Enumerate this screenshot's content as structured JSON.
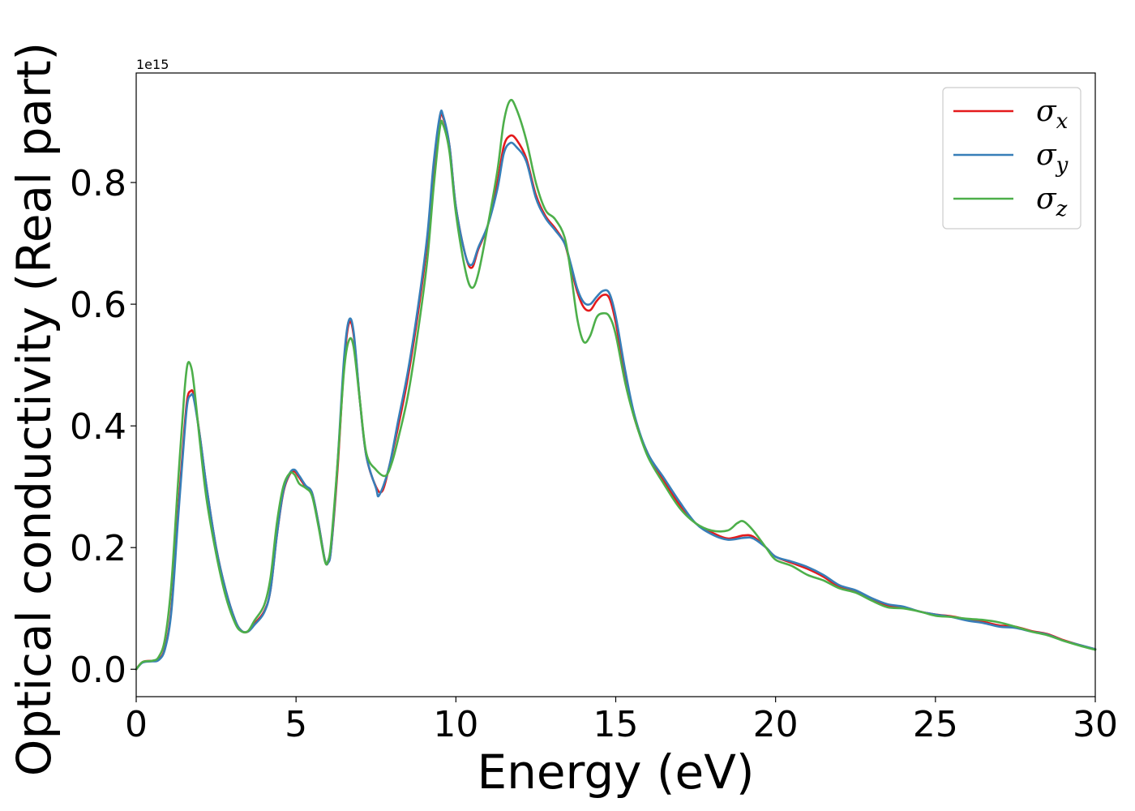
{
  "chart_data": {
    "type": "line",
    "title": "",
    "xlabel": "Energy (eV)",
    "ylabel": "Optical conductivity (Real part)",
    "y_offset_text": "1e15",
    "y_scale": 1000000000000000.0,
    "xlim": [
      0,
      30
    ],
    "ylim": [
      -0.045,
      0.98
    ],
    "x_ticks": [
      0,
      5,
      10,
      15,
      20,
      25,
      30
    ],
    "x_tick_labels": [
      "0",
      "5",
      "10",
      "15",
      "20",
      "25",
      "30"
    ],
    "y_ticks": [
      0.0,
      0.2,
      0.4,
      0.6,
      0.8
    ],
    "y_tick_labels": [
      "0.0",
      "0.2",
      "0.4",
      "0.6",
      "0.8"
    ],
    "grid": false,
    "legend_position": "top-right",
    "series": [
      {
        "name": "σ",
        "subscript": "x",
        "color": "#e41a1c",
        "points": [
          [
            0,
            0.0
          ],
          [
            0.2,
            0.012
          ],
          [
            0.5,
            0.014
          ],
          [
            0.7,
            0.016
          ],
          [
            0.9,
            0.035
          ],
          [
            1.1,
            0.1
          ],
          [
            1.3,
            0.25
          ],
          [
            1.5,
            0.39
          ],
          [
            1.6,
            0.445
          ],
          [
            1.7,
            0.457
          ],
          [
            1.8,
            0.45
          ],
          [
            2.0,
            0.38
          ],
          [
            2.2,
            0.3
          ],
          [
            2.5,
            0.2
          ],
          [
            2.8,
            0.13
          ],
          [
            3.1,
            0.08
          ],
          [
            3.3,
            0.063
          ],
          [
            3.5,
            0.062
          ],
          [
            3.7,
            0.075
          ],
          [
            4.0,
            0.095
          ],
          [
            4.2,
            0.13
          ],
          [
            4.4,
            0.22
          ],
          [
            4.6,
            0.29
          ],
          [
            4.8,
            0.32
          ],
          [
            4.95,
            0.325
          ],
          [
            5.1,
            0.315
          ],
          [
            5.3,
            0.3
          ],
          [
            5.5,
            0.29
          ],
          [
            5.7,
            0.24
          ],
          [
            5.9,
            0.18
          ],
          [
            6.0,
            0.175
          ],
          [
            6.1,
            0.2
          ],
          [
            6.3,
            0.33
          ],
          [
            6.5,
            0.5
          ],
          [
            6.65,
            0.568
          ],
          [
            6.8,
            0.55
          ],
          [
            7.0,
            0.44
          ],
          [
            7.2,
            0.35
          ],
          [
            7.5,
            0.3
          ],
          [
            7.7,
            0.293
          ],
          [
            7.9,
            0.33
          ],
          [
            8.2,
            0.4
          ],
          [
            8.5,
            0.48
          ],
          [
            8.8,
            0.58
          ],
          [
            9.1,
            0.7
          ],
          [
            9.3,
            0.82
          ],
          [
            9.5,
            0.905
          ],
          [
            9.6,
            0.907
          ],
          [
            9.8,
            0.86
          ],
          [
            10.0,
            0.76
          ],
          [
            10.3,
            0.68
          ],
          [
            10.5,
            0.66
          ],
          [
            10.7,
            0.69
          ],
          [
            11.0,
            0.73
          ],
          [
            11.3,
            0.8
          ],
          [
            11.5,
            0.86
          ],
          [
            11.7,
            0.877
          ],
          [
            11.9,
            0.87
          ],
          [
            12.2,
            0.84
          ],
          [
            12.5,
            0.78
          ],
          [
            12.8,
            0.745
          ],
          [
            13.1,
            0.725
          ],
          [
            13.4,
            0.7
          ],
          [
            13.6,
            0.66
          ],
          [
            13.8,
            0.62
          ],
          [
            14.0,
            0.595
          ],
          [
            14.2,
            0.59
          ],
          [
            14.4,
            0.605
          ],
          [
            14.6,
            0.615
          ],
          [
            14.8,
            0.61
          ],
          [
            15.0,
            0.57
          ],
          [
            15.3,
            0.48
          ],
          [
            15.6,
            0.41
          ],
          [
            16.0,
            0.355
          ],
          [
            16.5,
            0.31
          ],
          [
            17.0,
            0.27
          ],
          [
            17.5,
            0.24
          ],
          [
            18.0,
            0.225
          ],
          [
            18.5,
            0.215
          ],
          [
            19.0,
            0.22
          ],
          [
            19.3,
            0.218
          ],
          [
            19.7,
            0.2
          ],
          [
            20.0,
            0.185
          ],
          [
            20.5,
            0.175
          ],
          [
            21.0,
            0.165
          ],
          [
            21.5,
            0.152
          ],
          [
            22.0,
            0.135
          ],
          [
            22.5,
            0.128
          ],
          [
            23.0,
            0.115
          ],
          [
            23.5,
            0.105
          ],
          [
            24.0,
            0.102
          ],
          [
            24.5,
            0.095
          ],
          [
            25.0,
            0.09
          ],
          [
            25.5,
            0.087
          ],
          [
            26.0,
            0.082
          ],
          [
            26.5,
            0.078
          ],
          [
            27.0,
            0.072
          ],
          [
            27.5,
            0.07
          ],
          [
            28.0,
            0.063
          ],
          [
            28.5,
            0.058
          ],
          [
            29.0,
            0.048
          ],
          [
            29.5,
            0.04
          ],
          [
            30.0,
            0.033
          ]
        ]
      },
      {
        "name": "σ",
        "subscript": "y",
        "color": "#377eb8",
        "points": [
          [
            0,
            0.0
          ],
          [
            0.2,
            0.011
          ],
          [
            0.5,
            0.013
          ],
          [
            0.7,
            0.015
          ],
          [
            0.9,
            0.033
          ],
          [
            1.1,
            0.095
          ],
          [
            1.3,
            0.24
          ],
          [
            1.5,
            0.38
          ],
          [
            1.6,
            0.437
          ],
          [
            1.7,
            0.45
          ],
          [
            1.8,
            0.445
          ],
          [
            2.0,
            0.38
          ],
          [
            2.2,
            0.3
          ],
          [
            2.5,
            0.2
          ],
          [
            2.8,
            0.13
          ],
          [
            3.1,
            0.08
          ],
          [
            3.3,
            0.063
          ],
          [
            3.5,
            0.062
          ],
          [
            3.7,
            0.073
          ],
          [
            4.0,
            0.093
          ],
          [
            4.2,
            0.13
          ],
          [
            4.4,
            0.22
          ],
          [
            4.6,
            0.292
          ],
          [
            4.8,
            0.322
          ],
          [
            4.95,
            0.328
          ],
          [
            5.1,
            0.318
          ],
          [
            5.3,
            0.302
          ],
          [
            5.5,
            0.29
          ],
          [
            5.7,
            0.24
          ],
          [
            5.9,
            0.18
          ],
          [
            6.0,
            0.175
          ],
          [
            6.1,
            0.2
          ],
          [
            6.3,
            0.34
          ],
          [
            6.5,
            0.51
          ],
          [
            6.65,
            0.573
          ],
          [
            6.8,
            0.555
          ],
          [
            7.0,
            0.44
          ],
          [
            7.2,
            0.35
          ],
          [
            7.5,
            0.298
          ],
          [
            7.6,
            0.286
          ],
          [
            7.9,
            0.33
          ],
          [
            8.2,
            0.41
          ],
          [
            8.5,
            0.49
          ],
          [
            8.8,
            0.59
          ],
          [
            9.1,
            0.71
          ],
          [
            9.3,
            0.83
          ],
          [
            9.5,
            0.91
          ],
          [
            9.6,
            0.91
          ],
          [
            9.8,
            0.86
          ],
          [
            10.0,
            0.76
          ],
          [
            10.3,
            0.68
          ],
          [
            10.5,
            0.665
          ],
          [
            10.7,
            0.693
          ],
          [
            11.0,
            0.73
          ],
          [
            11.3,
            0.79
          ],
          [
            11.5,
            0.848
          ],
          [
            11.7,
            0.865
          ],
          [
            11.9,
            0.858
          ],
          [
            12.2,
            0.835
          ],
          [
            12.5,
            0.775
          ],
          [
            12.8,
            0.742
          ],
          [
            13.1,
            0.722
          ],
          [
            13.4,
            0.7
          ],
          [
            13.6,
            0.665
          ],
          [
            13.8,
            0.625
          ],
          [
            14.0,
            0.603
          ],
          [
            14.2,
            0.6
          ],
          [
            14.4,
            0.612
          ],
          [
            14.6,
            0.622
          ],
          [
            14.8,
            0.618
          ],
          [
            15.0,
            0.58
          ],
          [
            15.3,
            0.49
          ],
          [
            15.6,
            0.415
          ],
          [
            16.0,
            0.355
          ],
          [
            16.5,
            0.315
          ],
          [
            17.0,
            0.275
          ],
          [
            17.5,
            0.24
          ],
          [
            18.0,
            0.222
          ],
          [
            18.5,
            0.213
          ],
          [
            19.0,
            0.216
          ],
          [
            19.3,
            0.215
          ],
          [
            19.7,
            0.2
          ],
          [
            20.0,
            0.185
          ],
          [
            20.5,
            0.177
          ],
          [
            21.0,
            0.168
          ],
          [
            21.5,
            0.155
          ],
          [
            22.0,
            0.138
          ],
          [
            22.5,
            0.13
          ],
          [
            23.0,
            0.117
          ],
          [
            23.5,
            0.107
          ],
          [
            24.0,
            0.103
          ],
          [
            24.5,
            0.095
          ],
          [
            25.0,
            0.09
          ],
          [
            25.5,
            0.086
          ],
          [
            26.0,
            0.08
          ],
          [
            26.5,
            0.076
          ],
          [
            27.0,
            0.07
          ],
          [
            27.5,
            0.068
          ],
          [
            28.0,
            0.062
          ],
          [
            28.5,
            0.057
          ],
          [
            29.0,
            0.047
          ],
          [
            29.5,
            0.04
          ],
          [
            30.0,
            0.033
          ]
        ]
      },
      {
        "name": "σ",
        "subscript": "z",
        "color": "#4daf4a",
        "points": [
          [
            0,
            0.0
          ],
          [
            0.2,
            0.012
          ],
          [
            0.5,
            0.014
          ],
          [
            0.7,
            0.02
          ],
          [
            0.9,
            0.05
          ],
          [
            1.1,
            0.14
          ],
          [
            1.3,
            0.3
          ],
          [
            1.5,
            0.45
          ],
          [
            1.6,
            0.5
          ],
          [
            1.7,
            0.5
          ],
          [
            1.8,
            0.47
          ],
          [
            2.0,
            0.37
          ],
          [
            2.2,
            0.28
          ],
          [
            2.5,
            0.19
          ],
          [
            2.8,
            0.12
          ],
          [
            3.1,
            0.075
          ],
          [
            3.3,
            0.062
          ],
          [
            3.5,
            0.063
          ],
          [
            3.7,
            0.08
          ],
          [
            4.0,
            0.105
          ],
          [
            4.2,
            0.15
          ],
          [
            4.4,
            0.24
          ],
          [
            4.6,
            0.3
          ],
          [
            4.8,
            0.322
          ],
          [
            4.95,
            0.32
          ],
          [
            5.1,
            0.305
          ],
          [
            5.3,
            0.298
          ],
          [
            5.5,
            0.285
          ],
          [
            5.7,
            0.235
          ],
          [
            5.9,
            0.178
          ],
          [
            6.0,
            0.178
          ],
          [
            6.1,
            0.21
          ],
          [
            6.3,
            0.34
          ],
          [
            6.5,
            0.49
          ],
          [
            6.65,
            0.54
          ],
          [
            6.8,
            0.53
          ],
          [
            7.0,
            0.44
          ],
          [
            7.2,
            0.355
          ],
          [
            7.5,
            0.328
          ],
          [
            7.8,
            0.318
          ],
          [
            8.0,
            0.34
          ],
          [
            8.2,
            0.38
          ],
          [
            8.5,
            0.45
          ],
          [
            8.8,
            0.55
          ],
          [
            9.1,
            0.67
          ],
          [
            9.3,
            0.79
          ],
          [
            9.5,
            0.89
          ],
          [
            9.6,
            0.895
          ],
          [
            9.8,
            0.85
          ],
          [
            10.0,
            0.75
          ],
          [
            10.3,
            0.655
          ],
          [
            10.5,
            0.627
          ],
          [
            10.7,
            0.65
          ],
          [
            11.0,
            0.73
          ],
          [
            11.3,
            0.82
          ],
          [
            11.5,
            0.9
          ],
          [
            11.7,
            0.935
          ],
          [
            11.9,
            0.92
          ],
          [
            12.2,
            0.87
          ],
          [
            12.5,
            0.8
          ],
          [
            12.8,
            0.755
          ],
          [
            13.1,
            0.74
          ],
          [
            13.4,
            0.71
          ],
          [
            13.6,
            0.65
          ],
          [
            13.8,
            0.575
          ],
          [
            14.0,
            0.538
          ],
          [
            14.2,
            0.548
          ],
          [
            14.4,
            0.578
          ],
          [
            14.6,
            0.585
          ],
          [
            14.8,
            0.58
          ],
          [
            15.0,
            0.55
          ],
          [
            15.3,
            0.47
          ],
          [
            15.6,
            0.41
          ],
          [
            16.0,
            0.35
          ],
          [
            16.5,
            0.305
          ],
          [
            17.0,
            0.265
          ],
          [
            17.5,
            0.24
          ],
          [
            18.0,
            0.228
          ],
          [
            18.5,
            0.228
          ],
          [
            18.8,
            0.24
          ],
          [
            19.0,
            0.243
          ],
          [
            19.3,
            0.228
          ],
          [
            19.7,
            0.2
          ],
          [
            20.0,
            0.18
          ],
          [
            20.5,
            0.17
          ],
          [
            21.0,
            0.155
          ],
          [
            21.5,
            0.146
          ],
          [
            22.0,
            0.133
          ],
          [
            22.5,
            0.126
          ],
          [
            23.0,
            0.113
          ],
          [
            23.5,
            0.102
          ],
          [
            24.0,
            0.1
          ],
          [
            24.5,
            0.095
          ],
          [
            25.0,
            0.088
          ],
          [
            25.5,
            0.086
          ],
          [
            26.0,
            0.083
          ],
          [
            26.5,
            0.081
          ],
          [
            27.0,
            0.077
          ],
          [
            27.5,
            0.07
          ],
          [
            28.0,
            0.062
          ],
          [
            28.5,
            0.056
          ],
          [
            29.0,
            0.047
          ],
          [
            29.5,
            0.039
          ],
          [
            30.0,
            0.032
          ]
        ]
      }
    ]
  }
}
